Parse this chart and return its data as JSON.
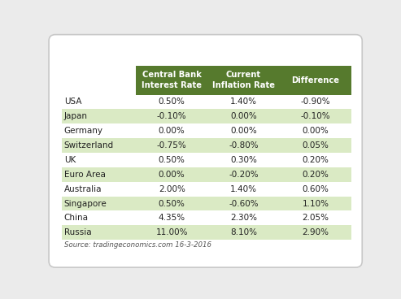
{
  "countries": [
    "USA",
    "Japan",
    "Germany",
    "Switzerland",
    "UK",
    "Euro Area",
    "Australia",
    "Singapore",
    "China",
    "Russia"
  ],
  "central_bank_rate": [
    "0.50%",
    "-0.10%",
    "0.00%",
    "-0.75%",
    "0.50%",
    "0.00%",
    "2.00%",
    "0.50%",
    "4.35%",
    "11.00%"
  ],
  "inflation_rate": [
    "1.40%",
    "0.00%",
    "0.00%",
    "-0.80%",
    "0.30%",
    "-0.20%",
    "1.40%",
    "-0.60%",
    "2.30%",
    "8.10%"
  ],
  "difference": [
    "-0.90%",
    "-0.10%",
    "0.00%",
    "0.05%",
    "0.20%",
    "0.20%",
    "0.60%",
    "1.10%",
    "2.05%",
    "2.90%"
  ],
  "header_bg": "#567a2d",
  "header_text": "#ffffff",
  "row_even_bg": "#ffffff",
  "row_odd_bg": "#daeac4",
  "country_text_color": "#222222",
  "data_text_color": "#222222",
  "source_text": "Source: tradingeconomics.com 16-3-2016",
  "col_headers": [
    "Central Bank\nInterest Rate",
    "Current\nInflation Rate",
    "Difference"
  ],
  "figure_bg": "#ffffff",
  "outer_bg": "#ebebeb",
  "card_edge_color": "#c8c8c8"
}
